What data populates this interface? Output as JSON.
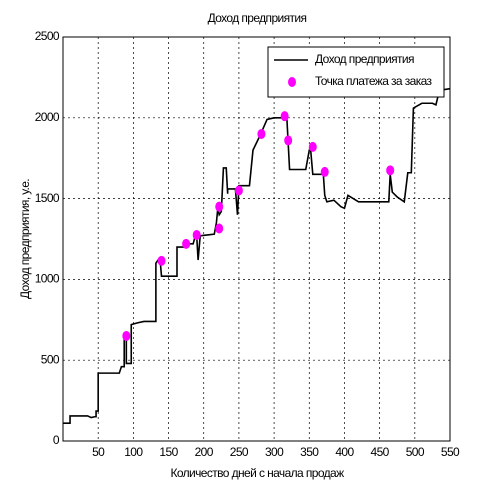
{
  "chart_data": {
    "type": "line",
    "title": "Доход предприятия",
    "x_label": "Количество дней с начала продаж",
    "y_label": "Доход предприятия, у.е.",
    "xlim": [
      0,
      550
    ],
    "ylim": [
      0,
      2500
    ],
    "xticks": [
      50,
      100,
      150,
      200,
      250,
      300,
      350,
      400,
      450,
      500,
      550
    ],
    "yticks": [
      0,
      500,
      1000,
      1500,
      2000,
      2500
    ],
    "grid": true,
    "legend": "upper right",
    "series": [
      {
        "name": "Доход предприятия",
        "color": "#000000",
        "x": [
          0,
          10,
          10,
          35,
          40,
          45,
          47,
          47,
          50,
          50,
          80,
          83,
          87,
          87,
          90,
          90,
          97,
          97,
          105,
          115,
          132,
          132,
          135,
          138,
          140,
          162,
          162,
          175,
          178,
          185,
          188,
          190,
          192,
          195,
          215,
          218,
          220,
          222,
          225,
          228,
          232,
          234,
          234,
          245,
          248,
          250,
          250,
          265,
          270,
          280,
          290,
          300,
          310,
          315,
          318,
          322,
          345,
          350,
          352,
          355,
          365,
          370,
          372,
          375,
          385,
          395,
          400,
          405,
          420,
          460,
          463,
          465,
          468,
          475,
          485,
          490,
          495,
          498,
          510,
          525,
          530,
          535,
          550
        ],
        "values": [
          110,
          110,
          155,
          155,
          145,
          150,
          150,
          185,
          185,
          420,
          420,
          460,
          460,
          640,
          640,
          480,
          480,
          720,
          730,
          740,
          740,
          1100,
          1120,
          1120,
          1020,
          1020,
          1200,
          1200,
          1220,
          1220,
          1270,
          1270,
          1120,
          1270,
          1280,
          1350,
          1440,
          1400,
          1420,
          1690,
          1690,
          1530,
          1560,
          1560,
          1400,
          1580,
          1580,
          1580,
          1800,
          1890,
          1990,
          2000,
          2000,
          2010,
          2010,
          1680,
          1680,
          1800,
          1800,
          1650,
          1650,
          1650,
          1520,
          1480,
          1490,
          1450,
          1440,
          1520,
          1480,
          1480,
          1480,
          1650,
          1540,
          1510,
          1480,
          1660,
          1660,
          2060,
          2090,
          2090,
          2080,
          2170,
          2180
        ]
      },
      {
        "name": "Точка платежа за заказ",
        "color": "#ff00ff",
        "type": "scatter",
        "x": [
          90,
          140,
          175,
          190,
          222,
          222,
          250,
          282,
          315,
          320,
          355,
          372,
          465
        ],
        "values": [
          650,
          1115,
          1220,
          1275,
          1450,
          1315,
          1550,
          1900,
          2010,
          1860,
          1820,
          1665,
          1675
        ]
      }
    ]
  }
}
